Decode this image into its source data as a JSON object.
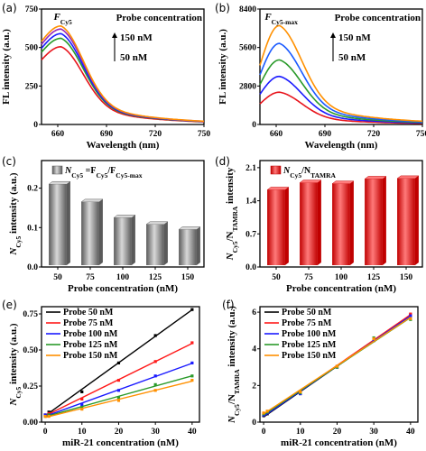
{
  "figure": {
    "panel_letters": [
      "(a)",
      "(b)",
      "(c)",
      "(d)",
      "(e)",
      "(f)"
    ]
  },
  "chart_data": [
    {
      "panel": "(a)",
      "type": "line",
      "xlabel": "Wavelength (nm)",
      "ylabel": "FL intensity (a.u.)",
      "xlim": [
        650,
        750
      ],
      "ylim": [
        0,
        750
      ],
      "xticks": [
        660,
        690,
        720,
        750
      ],
      "yticks": [
        0,
        250,
        500,
        750
      ],
      "annotations": {
        "peak_prefix": "F",
        "peak_sub": "Cy5",
        "legend_title": "Probe concentration",
        "arrow_top": "150 nM",
        "arrow_bottom": "50 nM"
      },
      "peak_x": 662,
      "series": [
        {
          "name": "50 nM",
          "color": "#e8141c",
          "peak": 505,
          "start": 420
        },
        {
          "name": "75 nM",
          "color": "#2a9a2a",
          "peak": 560,
          "start": 470
        },
        {
          "name": "100 nM",
          "color": "#1a1aff",
          "peak": 590,
          "start": 495
        },
        {
          "name": "125 nM",
          "color": "#9a2ab8",
          "peak": 620,
          "start": 520
        },
        {
          "name": "150 nM",
          "color": "#ff9000",
          "peak": 640,
          "start": 540
        }
      ]
    },
    {
      "panel": "(b)",
      "type": "line",
      "xlabel": "Wavelength (nm)",
      "ylabel": "FL intensity (a.u.)",
      "xlim": [
        650,
        750
      ],
      "ylim": [
        0,
        8400
      ],
      "xticks": [
        660,
        690,
        720,
        750
      ],
      "yticks": [
        0,
        2800,
        5600,
        8400
      ],
      "annotations": {
        "peak_prefix": "F",
        "peak_sub": "Cy5-max",
        "legend_title": "Probe concentration",
        "arrow_top": "150 nM",
        "arrow_bottom": "50 nM"
      },
      "peak_x": 662,
      "series": [
        {
          "name": "50 nM",
          "color": "#e8141c",
          "peak": 2350,
          "start": 1500
        },
        {
          "name": "75 nM",
          "color": "#1a1aff",
          "peak": 3500,
          "start": 2200
        },
        {
          "name": "100 nM",
          "color": "#2a9a2a",
          "peak": 4700,
          "start": 2900
        },
        {
          "name": "125 nM",
          "color": "#1a5aff",
          "peak": 5900,
          "start": 3600
        },
        {
          "name": "150 nM",
          "color": "#ff9000",
          "peak": 7200,
          "start": 4300
        }
      ]
    },
    {
      "panel": "(c)",
      "type": "bar",
      "categories": [
        "50",
        "75",
        "100",
        "125",
        "150"
      ],
      "values": [
        0.21,
        0.165,
        0.125,
        0.108,
        0.095
      ],
      "xlabel": "Probe concentration (nM)",
      "ylabel_prefix": "N",
      "ylabel_sub": "Cy5",
      "ylabel_suffix": " intensity (a.u.)",
      "ylim": [
        0,
        0.27
      ],
      "yticks": [
        0.0,
        0.1,
        0.2
      ],
      "legend": {
        "prefix": "N",
        "sub1": "Cy5",
        "mid": " =F",
        "sub2": "Cy5",
        "mid2": "/F",
        "sub3": "Cy5-max"
      },
      "color": "#8a8a8a"
    },
    {
      "panel": "(d)",
      "type": "bar",
      "categories": [
        "50",
        "75",
        "100",
        "125",
        "150"
      ],
      "values": [
        1.63,
        1.78,
        1.76,
        1.86,
        1.87
      ],
      "xlabel": "Probe concentration (nM)",
      "ylabel_prefix": "N",
      "ylabel_sub": "Cy5",
      "ylabel_mid": "/N",
      "ylabel_sub2": "TAMRA",
      "ylabel_suffix": " intensity",
      "ylim": [
        0,
        2.25
      ],
      "yticks": [
        0.0,
        0.7,
        1.4,
        2.1
      ],
      "legend": {
        "prefix": "N",
        "sub1": "Cy5",
        "mid": "/N",
        "sub2": "TAMRA"
      },
      "color": "#ff1a1a"
    },
    {
      "panel": "(e)",
      "type": "scatter",
      "xlabel": "miR-21 concentration (nM)",
      "ylabel_prefix": "N",
      "ylabel_sub": "Cy5",
      "ylabel_suffix": " intensity (a.u.)",
      "xlim": [
        -1,
        42
      ],
      "ylim": [
        0,
        0.8
      ],
      "xticks": [
        0,
        10,
        20,
        30,
        40
      ],
      "yticks": [
        0.0,
        0.25,
        0.5,
        0.75
      ],
      "x": [
        0,
        1,
        10,
        20,
        30,
        40
      ],
      "series": [
        {
          "name": "Probe 50 nM",
          "color": "#000000",
          "values": [
            0.05,
            0.07,
            0.21,
            0.41,
            0.6,
            0.78
          ]
        },
        {
          "name": "Probe 75 nM",
          "color": "#ff1a1a",
          "values": [
            0.05,
            0.06,
            0.16,
            0.29,
            0.42,
            0.55
          ]
        },
        {
          "name": "Probe 100 nM",
          "color": "#1a1aff",
          "values": [
            0.05,
            0.05,
            0.12,
            0.22,
            0.32,
            0.41
          ]
        },
        {
          "name": "Probe 125 nM",
          "color": "#2a9a2a",
          "values": [
            0.04,
            0.05,
            0.1,
            0.17,
            0.26,
            0.32
          ]
        },
        {
          "name": "Probe 150 nM",
          "color": "#ff9000",
          "values": [
            0.04,
            0.04,
            0.09,
            0.15,
            0.22,
            0.29
          ]
        }
      ]
    },
    {
      "panel": "(f)",
      "type": "scatter",
      "xlabel": "miR-21 concentration (nM)",
      "ylabel_prefix": "N",
      "ylabel_sub": "Cy5",
      "ylabel_mid": "/N",
      "ylabel_sub2": "TAMRA",
      "ylabel_suffix": " intensity (a.u.)",
      "xlim": [
        -1,
        42
      ],
      "ylim": [
        0,
        6.3
      ],
      "xticks": [
        0,
        10,
        20,
        30,
        40
      ],
      "yticks": [
        0,
        2,
        4,
        6
      ],
      "x": [
        0,
        1,
        10,
        20,
        30,
        40
      ],
      "series": [
        {
          "name": "Probe 50 nM",
          "color": "#000000",
          "values": [
            0.35,
            0.45,
            1.55,
            3.0,
            4.45,
            5.85
          ]
        },
        {
          "name": "Probe 75 nM",
          "color": "#ff1a1a",
          "values": [
            0.4,
            0.5,
            1.6,
            3.05,
            4.5,
            5.9
          ]
        },
        {
          "name": "Probe 100 nM",
          "color": "#1a1aff",
          "values": [
            0.4,
            0.5,
            1.55,
            3.0,
            4.5,
            5.8
          ]
        },
        {
          "name": "Probe 125 nM",
          "color": "#2a9a2a",
          "values": [
            0.45,
            0.55,
            1.6,
            3.0,
            4.6,
            5.6
          ]
        },
        {
          "name": "Probe 150 nM",
          "color": "#ff9000",
          "values": [
            0.5,
            0.6,
            1.65,
            3.05,
            4.55,
            5.65
          ]
        }
      ]
    }
  ]
}
